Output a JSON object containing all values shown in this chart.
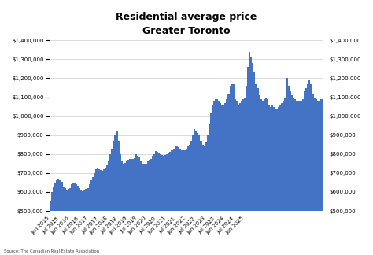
{
  "title_line1": "Residential average price",
  "title_line2": "Greater Toronto",
  "source": "Source: The Canadian Real Estate Association",
  "bar_color": "#4472C4",
  "background_color": "#ffffff",
  "ylim": [
    500000,
    1400000
  ],
  "yticks": [
    500000,
    600000,
    700000,
    800000,
    900000,
    1000000,
    1100000,
    1200000,
    1300000,
    1400000
  ],
  "values": [
    550000,
    600000,
    630000,
    650000,
    660000,
    670000,
    660000,
    655000,
    630000,
    620000,
    610000,
    615000,
    620000,
    640000,
    650000,
    645000,
    640000,
    635000,
    620000,
    610000,
    605000,
    610000,
    615000,
    620000,
    640000,
    660000,
    680000,
    700000,
    720000,
    730000,
    720000,
    715000,
    710000,
    720000,
    730000,
    740000,
    760000,
    800000,
    830000,
    870000,
    900000,
    920000,
    870000,
    800000,
    760000,
    750000,
    755000,
    760000,
    770000,
    775000,
    775000,
    775000,
    780000,
    800000,
    790000,
    785000,
    760000,
    750000,
    745000,
    750000,
    760000,
    770000,
    775000,
    790000,
    800000,
    815000,
    810000,
    805000,
    800000,
    795000,
    790000,
    795000,
    800000,
    805000,
    810000,
    820000,
    830000,
    840000,
    840000,
    835000,
    830000,
    825000,
    820000,
    825000,
    830000,
    840000,
    850000,
    870000,
    900000,
    930000,
    920000,
    910000,
    900000,
    870000,
    850000,
    840000,
    860000,
    900000,
    960000,
    1020000,
    1060000,
    1080000,
    1090000,
    1090000,
    1080000,
    1070000,
    1060000,
    1060000,
    1070000,
    1090000,
    1120000,
    1160000,
    1170000,
    1170000,
    1090000,
    1080000,
    1060000,
    1070000,
    1080000,
    1090000,
    1100000,
    1160000,
    1260000,
    1340000,
    1310000,
    1280000,
    1230000,
    1170000,
    1150000,
    1110000,
    1090000,
    1080000,
    1090000,
    1100000,
    1090000,
    1060000,
    1050000,
    1060000,
    1050000,
    1040000,
    1040000,
    1050000,
    1060000,
    1070000,
    1080000,
    1100000,
    1200000,
    1160000,
    1130000,
    1110000,
    1100000,
    1090000,
    1080000,
    1080000,
    1080000,
    1080000,
    1090000,
    1130000,
    1150000,
    1170000,
    1190000,
    1170000,
    1120000,
    1100000,
    1090000,
    1080000,
    1080000,
    1090000,
    1090000
  ],
  "x_tick_labels": [
    "Jan 2015",
    "Jul 2015",
    "Jan 2016",
    "Jul 2016",
    "Jan 2017",
    "Jul 2017",
    "Jan 2018",
    "Jul 2018",
    "Jan 2019",
    "Jul 2019",
    "Jan 2020",
    "Jul 2020",
    "Jan 2021",
    "Jul 2021",
    "Jan 2022",
    "Jul 2022",
    "Jan 2023",
    "Jul 2023",
    "Jan 2024",
    "Jul 2024",
    "Jan 2025"
  ],
  "x_tick_positions": [
    0,
    6,
    12,
    18,
    24,
    30,
    36,
    42,
    48,
    54,
    60,
    66,
    72,
    78,
    84,
    90,
    96,
    102,
    108,
    114,
    120
  ]
}
